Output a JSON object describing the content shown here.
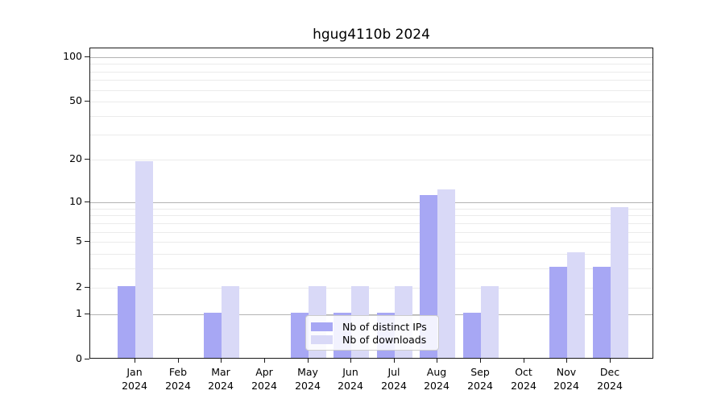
{
  "chart_data": {
    "type": "bar",
    "title": "hgug4110b 2024",
    "categories": [
      "Jan 2024",
      "Feb 2024",
      "Mar 2024",
      "Apr 2024",
      "May 2024",
      "Jun 2024",
      "Jul 2024",
      "Aug 2024",
      "Sep 2024",
      "Oct 2024",
      "Nov 2024",
      "Dec 2024"
    ],
    "months": [
      "Jan",
      "Feb",
      "Mar",
      "Apr",
      "May",
      "Jun",
      "Jul",
      "Aug",
      "Sep",
      "Oct",
      "Nov",
      "Dec"
    ],
    "year_label": "2024",
    "series": [
      {
        "name": "Nb of distinct IPs",
        "color": "#a7a7f4",
        "values": [
          2,
          0,
          1,
          0,
          1,
          1,
          1,
          11,
          1,
          0,
          3,
          3
        ]
      },
      {
        "name": "Nb of downloads",
        "color": "#d9d9f7",
        "values": [
          19,
          0,
          2,
          0,
          2,
          2,
          2,
          12,
          2,
          0,
          4,
          9
        ]
      }
    ],
    "yscale": "log1p",
    "ylim": [
      0,
      115
    ],
    "ytick_values": [
      0,
      1,
      2,
      5,
      10,
      20,
      50,
      100
    ],
    "grid": {
      "major": [
        1,
        10,
        100
      ],
      "minor": [
        2,
        3,
        4,
        5,
        6,
        7,
        8,
        9,
        20,
        30,
        40,
        50,
        60,
        70,
        80,
        90
      ],
      "legend_position": "lower center"
    }
  },
  "colors": {
    "bar_ips": "#a7a7f4",
    "bar_downloads": "#d9d9f7",
    "grid_major": "#b4b4b4",
    "grid_minor": "#ebebeb",
    "spine": "#1a1a1a",
    "text": "#000000",
    "legend_border": "#cccccc"
  }
}
